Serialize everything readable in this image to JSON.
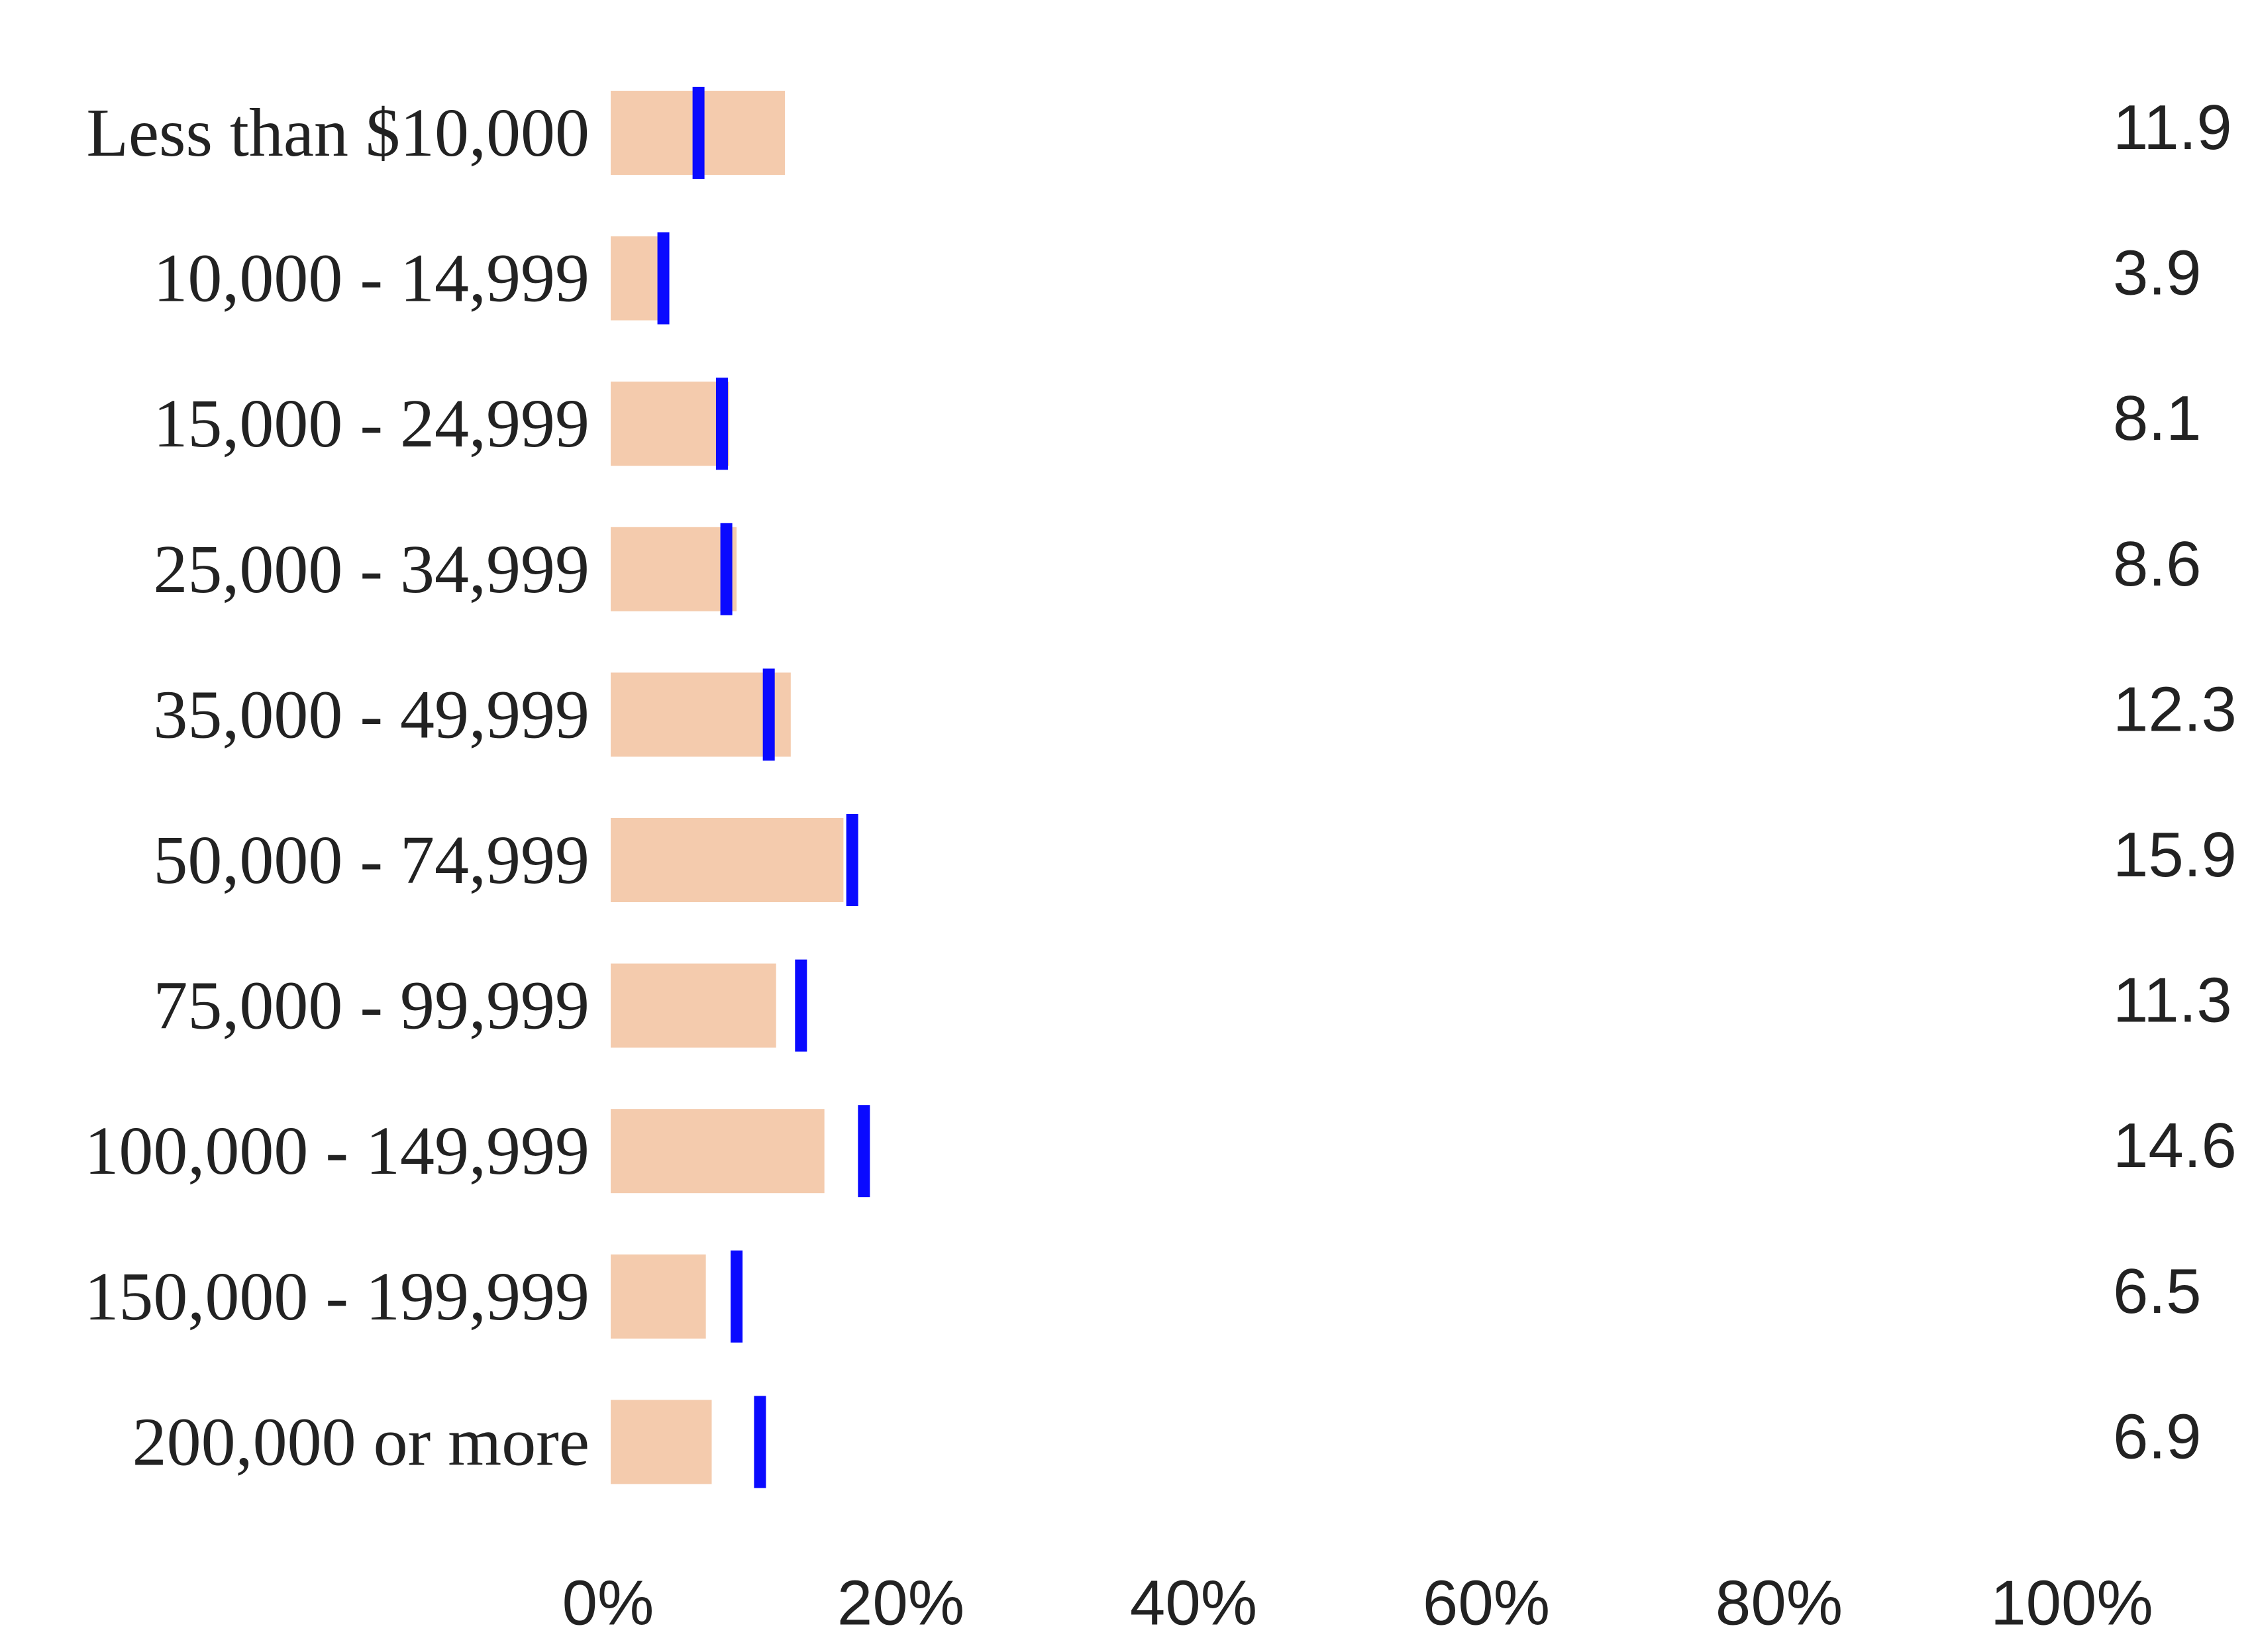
{
  "chart_data": {
    "type": "bar",
    "orientation": "horizontal",
    "title": "",
    "xlabel": "",
    "ylabel": "",
    "xlim": [
      0,
      100
    ],
    "x_ticks": [
      "0%",
      "20%",
      "40%",
      "60%",
      "80%",
      "100%"
    ],
    "grid": false,
    "legend": "none",
    "categories": [
      "Less than $10,000",
      "10,000 - 14,999",
      "15,000 - 24,999",
      "25,000 - 34,999",
      "35,000 - 49,999",
      "50,000 - 74,999",
      "75,000 - 99,999",
      "100,000 - 149,999",
      "150,000 - 199,999",
      "200,000 or more"
    ],
    "series": [
      {
        "values": [
          11.9,
          3.9,
          8.1,
          8.6,
          12.3,
          15.9,
          11.3,
          14.6,
          6.5,
          6.9
        ],
        "color": "#f4cbad",
        "style": "bar"
      },
      {
        "values": [
          6.0,
          3.6,
          7.6,
          7.9,
          10.8,
          16.5,
          13.0,
          17.3,
          8.6,
          10.2
        ],
        "color": "#0a0aff",
        "style": "marker"
      }
    ],
    "value_labels": [
      "11.9",
      "3.9",
      "8.1",
      "8.6",
      "12.3",
      "15.9",
      "11.3",
      "14.6",
      "6.5",
      "6.9"
    ]
  }
}
